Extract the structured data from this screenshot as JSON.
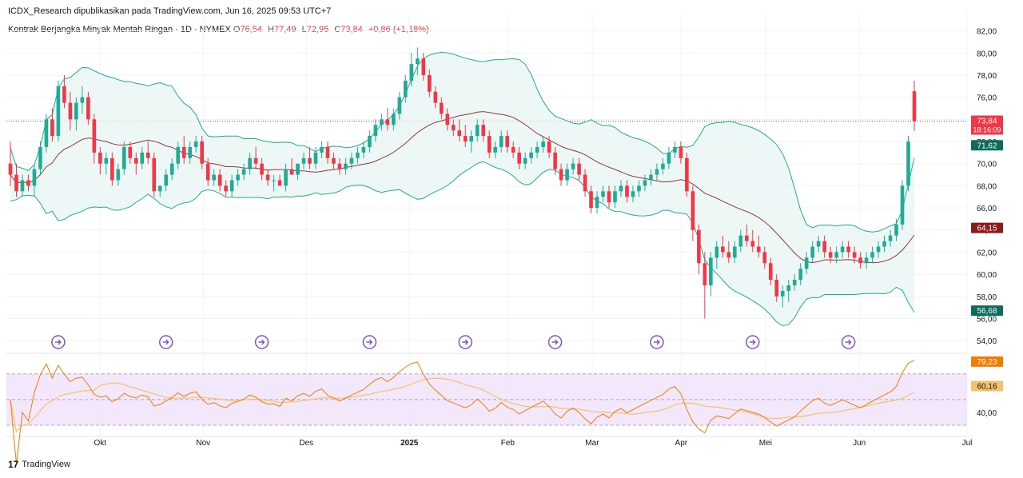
{
  "header": {
    "text": "ICDX_Research dipublikasikan pada TradingView.com, Jun 16, 2025 09:53 UTC+7"
  },
  "legend": {
    "title": "Kontrak Berjangka Minyak Mentah Ringan · 1D · NYMEX",
    "open_label": "O",
    "open": "76,54",
    "high_label": "H",
    "high": "77,49",
    "low_label": "L",
    "low": "72,95",
    "close_label": "C",
    "close": "73,84",
    "change": "+0,86 (+1,18%)"
  },
  "footer": {
    "brand": "TradingView",
    "logo_glyph": "17"
  },
  "colors": {
    "up": "#22ab94",
    "down": "#f23645",
    "band": "#22ab94",
    "band_fill": "#e6f4f2",
    "basis": "#8b3a3a",
    "rsi": "#f57c00",
    "rsi_ma": "#f5c26b",
    "rsi_zone": "#f0e1fb",
    "event": "#7e57c2",
    "last_price": "#f23645"
  },
  "chart_data": {
    "type": "candlestick",
    "title": "Kontrak Berjangka Minyak Mentah Ringan · 1D · NYMEX",
    "x_ticks": [
      "Okt",
      "Nov",
      "Des",
      "2025",
      "Feb",
      "Mar",
      "Apr",
      "Mei",
      "Jun",
      "Jul"
    ],
    "y_ticks": [
      "82,00",
      "80,00",
      "78,00",
      "76,00",
      "74,00",
      "72,00",
      "70,00",
      "68,00",
      "66,00",
      "64,00",
      "62,00",
      "60,00",
      "58,00",
      "56,00",
      "54,00"
    ],
    "ylim": [
      53,
      83.2
    ],
    "rsi_ticks": [
      "40,00"
    ],
    "rsi_ylim": [
      25,
      86
    ],
    "rsi_band": [
      30,
      70
    ],
    "rsi_mid": 50,
    "price_badges": [
      {
        "label": "73,84",
        "sub": "18:16:09",
        "value": 73.84,
        "color": "#f23645"
      },
      {
        "label": "71,62",
        "value": 71.62,
        "color": "#0b6b5c"
      },
      {
        "label": "64,15",
        "value": 64.15,
        "color": "#8b1a1a"
      },
      {
        "label": "56,68",
        "value": 56.68,
        "color": "#0b6b5c"
      }
    ],
    "rsi_badges": [
      {
        "label": "79,23",
        "value": 79.23,
        "color": "#f57c00"
      },
      {
        "label": "60,16",
        "value": 60.16,
        "color": "#f5c26b",
        "text_color": "#131722"
      }
    ],
    "events": [
      8,
      26,
      42,
      60,
      76,
      91,
      108,
      124,
      140
    ],
    "last_price": 73.84,
    "candles": [
      [
        70,
        72,
        68,
        69
      ],
      [
        69,
        70,
        67,
        67.5
      ],
      [
        67.5,
        69,
        67,
        68.5
      ],
      [
        68.5,
        69,
        67.5,
        68
      ],
      [
        68,
        70,
        67,
        69.5
      ],
      [
        69.5,
        72,
        69,
        71.5
      ],
      [
        71.5,
        74.5,
        71,
        74
      ],
      [
        74,
        75,
        72,
        72.5
      ],
      [
        72.5,
        77.5,
        72,
        77
      ],
      [
        77,
        78,
        75,
        75.5
      ],
      [
        75.5,
        76.5,
        73,
        74
      ],
      [
        74,
        76,
        73,
        75.5
      ],
      [
        75.5,
        77,
        74.5,
        76
      ],
      [
        76,
        76.5,
        73.5,
        74
      ],
      [
        74,
        74.5,
        70,
        71
      ],
      [
        71,
        71.5,
        69,
        70
      ],
      [
        70,
        71,
        69,
        70.5
      ],
      [
        70.5,
        71,
        68,
        68.5
      ],
      [
        68.5,
        70,
        68,
        69.5
      ],
      [
        69.5,
        72,
        69,
        71.5
      ],
      [
        71.5,
        72,
        70,
        70.5
      ],
      [
        70.5,
        71,
        69,
        70
      ],
      [
        70,
        71.5,
        69.5,
        71
      ],
      [
        71,
        72,
        70,
        70.5
      ],
      [
        70.5,
        71,
        67,
        67.5
      ],
      [
        67.5,
        68,
        67,
        68
      ],
      [
        68,
        69.5,
        67.5,
        69
      ],
      [
        69,
        70.5,
        68.5,
        70
      ],
      [
        70,
        72,
        69.5,
        71.5
      ],
      [
        71.5,
        72.5,
        70,
        70.5
      ],
      [
        70.5,
        72,
        70,
        71.5
      ],
      [
        71.5,
        72.5,
        71,
        72
      ],
      [
        72,
        72.5,
        69.5,
        70
      ],
      [
        70,
        70.5,
        68,
        68.5
      ],
      [
        68.5,
        69.5,
        68,
        69
      ],
      [
        69,
        69.5,
        67.5,
        68
      ],
      [
        68,
        68.5,
        67,
        67.5
      ],
      [
        67.5,
        69,
        67,
        68.5
      ],
      [
        68.5,
        69.5,
        68,
        69
      ],
      [
        69,
        70,
        68.5,
        69.5
      ],
      [
        69.5,
        71,
        69,
        70.5
      ],
      [
        70.5,
        71.5,
        69.5,
        70
      ],
      [
        70,
        70.5,
        68.5,
        69
      ],
      [
        69,
        69.5,
        68,
        68.5
      ],
      [
        68.5,
        69,
        67.5,
        68.5
      ],
      [
        68.5,
        69,
        68,
        68
      ],
      [
        68,
        70,
        67.5,
        69.5
      ],
      [
        69.5,
        70.5,
        69,
        69
      ],
      [
        69,
        70,
        68.5,
        70
      ],
      [
        70,
        71,
        69.5,
        70.5
      ],
      [
        70.5,
        71.5,
        69.5,
        70
      ],
      [
        70,
        71.5,
        69.5,
        71
      ],
      [
        71,
        72,
        70.5,
        71.5
      ],
      [
        71.5,
        72,
        70,
        70.5
      ],
      [
        70.5,
        71,
        69.5,
        70
      ],
      [
        70,
        70.5,
        69,
        69.5
      ],
      [
        69.5,
        70.5,
        69,
        70
      ],
      [
        70,
        71,
        69.5,
        70.5
      ],
      [
        70.5,
        71.5,
        70,
        71
      ],
      [
        71,
        72,
        70.5,
        71.5
      ],
      [
        71.5,
        73,
        71,
        72.5
      ],
      [
        72.5,
        74,
        72,
        73.5
      ],
      [
        73.5,
        74.5,
        73,
        74
      ],
      [
        74,
        75,
        73,
        73.5
      ],
      [
        73.5,
        75,
        73,
        74.5
      ],
      [
        74.5,
        76.5,
        74,
        76
      ],
      [
        76,
        78,
        75.5,
        77.5
      ],
      [
        77.5,
        80,
        77,
        79
      ],
      [
        79,
        80.5,
        78,
        79.5
      ],
      [
        79.5,
        80,
        77.5,
        78
      ],
      [
        78,
        78.5,
        76,
        76.5
      ],
      [
        76.5,
        77,
        75,
        75.5
      ],
      [
        75.5,
        76,
        74,
        74.5
      ],
      [
        74.5,
        75,
        73,
        73.5
      ],
      [
        73.5,
        74,
        72.5,
        73
      ],
      [
        73,
        74,
        72,
        72.5
      ],
      [
        72.5,
        73.5,
        71.5,
        72
      ],
      [
        72,
        73,
        71,
        72.5
      ],
      [
        72.5,
        74,
        72,
        73.5
      ],
      [
        73.5,
        74,
        72,
        72.5
      ],
      [
        72.5,
        73,
        70.5,
        71
      ],
      [
        71,
        72,
        70.5,
        71.5
      ],
      [
        71.5,
        73,
        71,
        72.5
      ],
      [
        72.5,
        73,
        71,
        71.5
      ],
      [
        71.5,
        72,
        70.5,
        71
      ],
      [
        71,
        71.5,
        69.5,
        70
      ],
      [
        70,
        71,
        69.5,
        70.5
      ],
      [
        70.5,
        71.5,
        70,
        71
      ],
      [
        71,
        72,
        70.5,
        71.5
      ],
      [
        71.5,
        72.5,
        71,
        72
      ],
      [
        72,
        72.5,
        70.5,
        71
      ],
      [
        71,
        71.5,
        69,
        69.5
      ],
      [
        69.5,
        70,
        68,
        68.5
      ],
      [
        68.5,
        70,
        68,
        69.5
      ],
      [
        69.5,
        70.5,
        69,
        70
      ],
      [
        70,
        70.5,
        68.5,
        69
      ],
      [
        69,
        69.5,
        67,
        67.5
      ],
      [
        67.5,
        68,
        65.5,
        66
      ],
      [
        66,
        67.5,
        65.5,
        67
      ],
      [
        67,
        68,
        66.5,
        67.5
      ],
      [
        67.5,
        68,
        66,
        66.5
      ],
      [
        66.5,
        68,
        66,
        67.5
      ],
      [
        67.5,
        68.5,
        67,
        68
      ],
      [
        68,
        68.5,
        66.5,
        67
      ],
      [
        67,
        68,
        66.5,
        67.5
      ],
      [
        67.5,
        68.5,
        67,
        68
      ],
      [
        68,
        69,
        67.5,
        68.5
      ],
      [
        68.5,
        69.5,
        68,
        69
      ],
      [
        69,
        70,
        68.5,
        69.5
      ],
      [
        69.5,
        70.5,
        69,
        70
      ],
      [
        70,
        71.5,
        69.5,
        71
      ],
      [
        71,
        72,
        70.5,
        71.5
      ],
      [
        71.5,
        72,
        70,
        70.5
      ],
      [
        70.5,
        71,
        67,
        67.5
      ],
      [
        67.5,
        68,
        63,
        64
      ],
      [
        64,
        64.5,
        60,
        61
      ],
      [
        61,
        62,
        56,
        59
      ],
      [
        59,
        62,
        58,
        61.5
      ],
      [
        61.5,
        63,
        60.5,
        62.5
      ],
      [
        62.5,
        63.5,
        61.5,
        62
      ],
      [
        62,
        63,
        61,
        61.5
      ],
      [
        61.5,
        63,
        61,
        62.5
      ],
      [
        62.5,
        64,
        62,
        63.5
      ],
      [
        63.5,
        64.5,
        62.5,
        63
      ],
      [
        63,
        64,
        62,
        62.5
      ],
      [
        62.5,
        63.5,
        61.5,
        62
      ],
      [
        62,
        62.5,
        60.5,
        61
      ],
      [
        61,
        61.5,
        59,
        59.5
      ],
      [
        59.5,
        60,
        57.5,
        58
      ],
      [
        58,
        59,
        57,
        58.5
      ],
      [
        58.5,
        59.5,
        57.5,
        59
      ],
      [
        59,
        60,
        58.5,
        59.5
      ],
      [
        59.5,
        61,
        59,
        60.5
      ],
      [
        60.5,
        62,
        60,
        61.5
      ],
      [
        61.5,
        63,
        61,
        62.5
      ],
      [
        62.5,
        63.5,
        62,
        63
      ],
      [
        63,
        63.5,
        61.5,
        62
      ],
      [
        62,
        62.5,
        61,
        61.5
      ],
      [
        61.5,
        62.5,
        61,
        62
      ],
      [
        62,
        63,
        61.5,
        62.5
      ],
      [
        62.5,
        63,
        61.5,
        62
      ],
      [
        62,
        62.5,
        61,
        61.5
      ],
      [
        61.5,
        62,
        60.5,
        61
      ],
      [
        61,
        62,
        60.5,
        61.5
      ],
      [
        61.5,
        62.5,
        61,
        62
      ],
      [
        62,
        63,
        61.5,
        62.5
      ],
      [
        62.5,
        63.5,
        62,
        63
      ],
      [
        63,
        64,
        62.5,
        63.5
      ],
      [
        63.5,
        65,
        63,
        64.5
      ],
      [
        64.5,
        68.5,
        64,
        68
      ],
      [
        68,
        72.5,
        67.5,
        72
      ],
      [
        76.54,
        77.49,
        72.95,
        73.84
      ]
    ],
    "bb_upper": [],
    "bb_lower": [],
    "bb_basis": [],
    "rsi": [],
    "rsi_ma": []
  }
}
